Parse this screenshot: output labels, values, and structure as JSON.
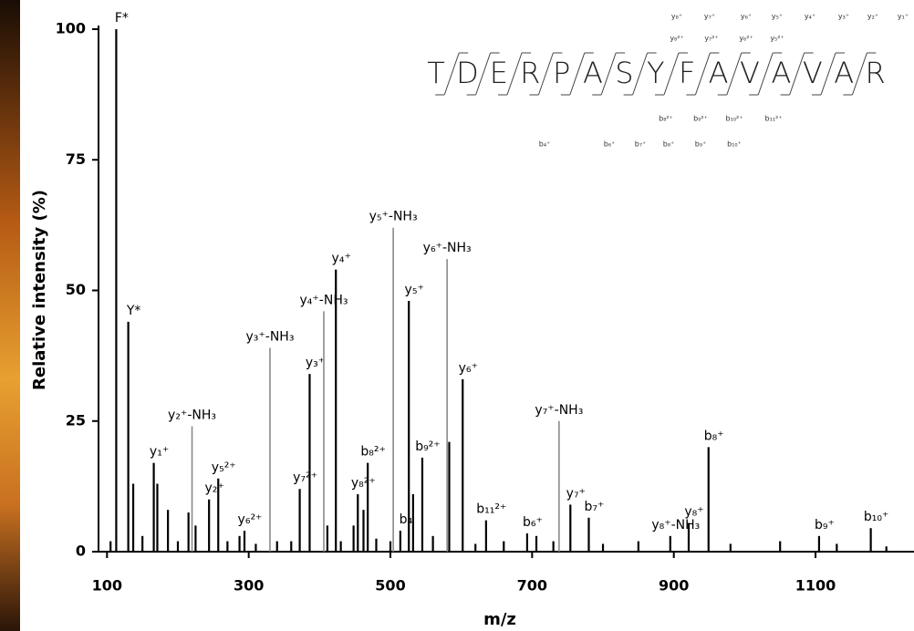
{
  "chart_data": {
    "type": "stem",
    "x_label": "m/z",
    "y_label": "Relative intensity (%)",
    "xlim": [
      88,
      1239
    ],
    "ylim": [
      0,
      100
    ],
    "xticks": [
      100,
      300,
      500,
      700,
      900,
      1100
    ],
    "yticks": [
      0,
      25,
      50,
      75,
      100
    ],
    "series": [
      {
        "color": "#000000",
        "x": [
          105,
          113,
          130,
          137,
          150,
          166,
          171,
          186,
          200,
          215,
          225,
          244,
          257,
          270,
          287,
          294,
          310,
          340,
          360,
          372,
          386,
          411,
          423,
          430,
          448,
          454,
          462,
          468,
          480,
          500,
          514,
          526,
          532,
          545,
          560,
          583,
          602,
          620,
          635,
          660,
          693,
          706,
          730,
          754,
          780,
          800,
          850,
          895,
          921,
          949,
          980,
          1050,
          1105,
          1130,
          1178,
          1200
        ],
        "values": [
          2,
          100,
          44,
          13,
          3,
          17,
          13,
          8,
          2,
          7.5,
          5,
          10,
          14,
          2,
          3,
          4,
          1.5,
          2,
          2,
          12,
          34,
          5,
          54,
          2,
          5,
          11,
          8,
          17,
          2.5,
          2,
          4,
          48,
          11,
          18,
          3,
          21,
          33,
          1.5,
          6,
          2,
          3.5,
          3,
          2,
          9,
          6.5,
          1.5,
          2,
          3,
          5.5,
          20,
          1.5,
          2,
          3,
          1.5,
          4.5,
          1
        ],
        "labels": [
          null,
          "F*",
          "Y*",
          null,
          null,
          "y₁⁺",
          null,
          null,
          null,
          null,
          null,
          "y₂⁺",
          "y₅²⁺",
          null,
          null,
          "y₆²⁺",
          null,
          null,
          null,
          "y₇²⁺",
          "y₃⁺",
          null,
          "y₄⁺",
          null,
          null,
          "y₈²⁺",
          null,
          "b₈²⁺",
          null,
          null,
          "b₄",
          "y₅⁺",
          null,
          "b₉²⁺",
          null,
          null,
          "y₆⁺",
          null,
          "b₁₁²⁺",
          null,
          "b₆⁺",
          null,
          null,
          "y₇⁺",
          "b₇⁺",
          null,
          null,
          "y₈⁺-NH₃",
          "y₈⁺",
          "b₈⁺",
          null,
          null,
          "b₉⁺",
          null,
          "b₁₀⁺",
          null
        ]
      },
      {
        "color": "#8a8a8a",
        "x": [
          220,
          330,
          406,
          504,
          580,
          738
        ],
        "values": [
          24,
          39,
          46,
          62,
          56,
          25
        ],
        "labels": [
          "y₂⁺-NH₃",
          "y₃⁺-NH₃",
          "y₄⁺-NH₃",
          "y₅⁺-NH₃",
          "y₆⁺-NH₃",
          "y₇⁺-NH₃"
        ]
      }
    ]
  },
  "sequence": {
    "residues": [
      "T",
      "D",
      "E",
      "R",
      "P",
      "A",
      "S",
      "Y",
      "F",
      "A",
      "V",
      "A",
      "V",
      "A",
      "R"
    ],
    "y_ions": [
      "y₈⁺",
      "y₇⁺",
      "y₆⁺",
      "y₅⁺",
      "y₄⁺",
      "y₃⁺",
      "y₂⁺",
      "y₁⁺"
    ],
    "y_ions_2plus": [
      "y₈²⁺",
      "y₇²⁺",
      "y₆²⁺",
      "y₅²⁺"
    ],
    "b_ions_2plus": [
      "b₈²⁺",
      "b₉²⁺",
      "b₁₀²⁺",
      "b₁₁²⁺"
    ],
    "b_ions": [
      "b₄⁺",
      "b₆⁺",
      "b₇⁺",
      "b₈⁺",
      "b₉⁺",
      "b₁₀⁺"
    ]
  }
}
